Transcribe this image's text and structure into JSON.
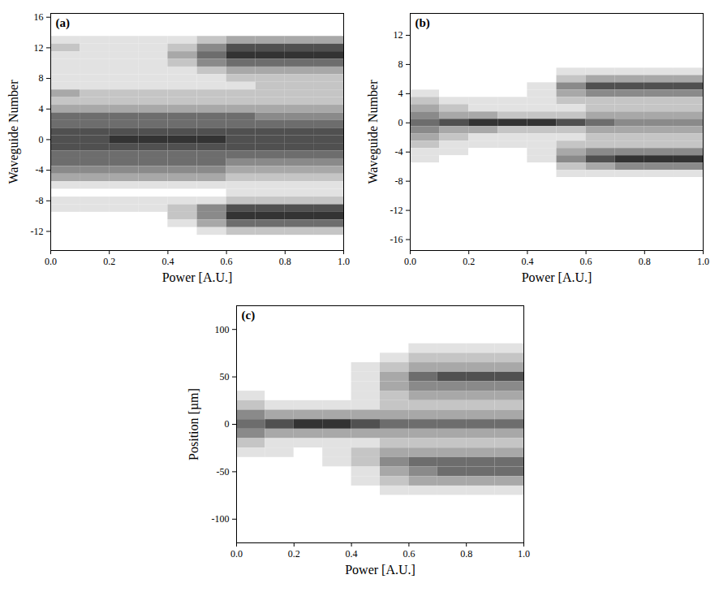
{
  "chart_data": [
    {
      "type": "heatmap",
      "title": "(a)",
      "xlabel": "Power [A.U.]",
      "ylabel": "Waveguide Number",
      "color": "#333333",
      "xlim": [
        0,
        1
      ],
      "xticks": [
        {
          "value": 0,
          "label": "0.0"
        },
        0.2,
        0.4,
        0.6,
        0.8,
        {
          "value": 1,
          "label": "1.0"
        }
      ],
      "ylim": [
        -14.5,
        16.5
      ],
      "yticks": [
        -12,
        -8,
        -4,
        0,
        4,
        8,
        12,
        16
      ],
      "x": [
        0.05,
        0.15,
        0.25,
        0.35,
        0.45,
        0.55,
        0.65,
        0.75,
        0.85,
        0.95
      ],
      "y": [
        13,
        12,
        11,
        10,
        9,
        8,
        7,
        6,
        5,
        4,
        3,
        2,
        1,
        0,
        -1,
        -2,
        -3,
        -4,
        -5,
        -6,
        -7,
        -8,
        -9,
        -10,
        -11,
        -12
      ],
      "z": [
        [
          1,
          1,
          1,
          1,
          1,
          2,
          3,
          3,
          3,
          3
        ],
        [
          2,
          1,
          1,
          1,
          2,
          4,
          6,
          6,
          6,
          6
        ],
        [
          1,
          1,
          1,
          1,
          3,
          5,
          7,
          7,
          7,
          7
        ],
        [
          1,
          1,
          1,
          1,
          2,
          4,
          5,
          5,
          5,
          5
        ],
        [
          1,
          1,
          1,
          1,
          1,
          2,
          3,
          3,
          3,
          3
        ],
        [
          1,
          1,
          1,
          1,
          1,
          1,
          2,
          2,
          2,
          2
        ],
        [
          1,
          1,
          1,
          1,
          1,
          1,
          1,
          2,
          2,
          2
        ],
        [
          3,
          2,
          2,
          2,
          2,
          2,
          2,
          2,
          2,
          2
        ],
        [
          2,
          2,
          2,
          2,
          2,
          2,
          2,
          2,
          2,
          2
        ],
        [
          3,
          3,
          3,
          3,
          3,
          3,
          3,
          3,
          3,
          3
        ],
        [
          5,
          5,
          5,
          5,
          5,
          5,
          5,
          4,
          4,
          4
        ],
        [
          5,
          5,
          5,
          5,
          5,
          5,
          5,
          5,
          5,
          5
        ],
        [
          6,
          6,
          6,
          6,
          6,
          6,
          6,
          6,
          6,
          6
        ],
        [
          6,
          6,
          7,
          7,
          7,
          7,
          6,
          6,
          6,
          6
        ],
        [
          6,
          6,
          6,
          6,
          6,
          6,
          6,
          6,
          6,
          6
        ],
        [
          5,
          5,
          5,
          5,
          5,
          5,
          5,
          5,
          5,
          5
        ],
        [
          5,
          5,
          5,
          5,
          5,
          5,
          4,
          4,
          4,
          4
        ],
        [
          4,
          4,
          4,
          4,
          4,
          4,
          3,
          3,
          3,
          3
        ],
        [
          3,
          3,
          3,
          3,
          3,
          3,
          2,
          2,
          2,
          2
        ],
        [
          1,
          1,
          1,
          1,
          1,
          1,
          1,
          1,
          1,
          1
        ],
        [
          0,
          0,
          0,
          0,
          0,
          0,
          1,
          1,
          1,
          1
        ],
        [
          1,
          1,
          1,
          1,
          1,
          1,
          2,
          2,
          2,
          2
        ],
        [
          1,
          1,
          1,
          1,
          2,
          4,
          6,
          6,
          6,
          6
        ],
        [
          0,
          0,
          0,
          0,
          2,
          4,
          7,
          7,
          7,
          7
        ],
        [
          0,
          0,
          0,
          0,
          1,
          3,
          5,
          5,
          5,
          5
        ],
        [
          0,
          0,
          0,
          0,
          0,
          1,
          2,
          2,
          2,
          2
        ]
      ]
    },
    {
      "type": "heatmap",
      "title": "(b)",
      "xlabel": "Power [A.U.]",
      "ylabel": "Waveguide Number",
      "color": "#333333",
      "xlim": [
        0,
        1
      ],
      "xticks": [
        {
          "value": 0,
          "label": "0.0"
        },
        0.2,
        0.4,
        0.6,
        0.8,
        {
          "value": 1,
          "label": "1.0"
        }
      ],
      "ylim": [
        -17.5,
        15
      ],
      "yticks": [
        -16,
        -12,
        -8,
        -4,
        0,
        4,
        8,
        12
      ],
      "x": [
        0.05,
        0.15,
        0.25,
        0.35,
        0.45,
        0.55,
        0.65,
        0.75,
        0.85,
        0.95
      ],
      "y": [
        8,
        7,
        6,
        5,
        4,
        3,
        2,
        1,
        0,
        -1,
        -2,
        -3,
        -4,
        -5,
        -6,
        -7,
        -8
      ],
      "z": [
        [
          0,
          0,
          0,
          0,
          0,
          0,
          0,
          0,
          0,
          0
        ],
        [
          0,
          0,
          0,
          0,
          0,
          1,
          1,
          1,
          1,
          1
        ],
        [
          0,
          0,
          0,
          0,
          0,
          2,
          3,
          3,
          3,
          3
        ],
        [
          0,
          0,
          0,
          0,
          1,
          4,
          6,
          6,
          6,
          6
        ],
        [
          1,
          0,
          0,
          0,
          1,
          3,
          4,
          4,
          4,
          4
        ],
        [
          2,
          1,
          1,
          1,
          1,
          2,
          2,
          2,
          2,
          2
        ],
        [
          3,
          2,
          1,
          1,
          1,
          1,
          2,
          2,
          2,
          2
        ],
        [
          4,
          3,
          3,
          2,
          2,
          2,
          3,
          3,
          3,
          3
        ],
        [
          5,
          6,
          7,
          7,
          7,
          6,
          5,
          4,
          4,
          4
        ],
        [
          4,
          3,
          3,
          2,
          2,
          2,
          3,
          3,
          3,
          3
        ],
        [
          3,
          2,
          1,
          1,
          1,
          1,
          2,
          2,
          2,
          2
        ],
        [
          2,
          1,
          1,
          1,
          1,
          2,
          2,
          2,
          2,
          2
        ],
        [
          1,
          1,
          0,
          0,
          1,
          3,
          4,
          4,
          4,
          4
        ],
        [
          1,
          0,
          0,
          0,
          1,
          4,
          6,
          7,
          7,
          7
        ],
        [
          0,
          0,
          0,
          0,
          0,
          2,
          3,
          4,
          4,
          4
        ],
        [
          0,
          0,
          0,
          0,
          0,
          1,
          1,
          1,
          1,
          1
        ],
        [
          0,
          0,
          0,
          0,
          0,
          0,
          0,
          0,
          0,
          0
        ]
      ]
    },
    {
      "type": "heatmap",
      "title": "(c)",
      "xlabel": "Power [A.U.]",
      "ylabel": "Position [µm]",
      "color": "#333333",
      "xlim": [
        0,
        1
      ],
      "xticks": [
        {
          "value": 0,
          "label": "0.0"
        },
        0.2,
        0.4,
        0.6,
        0.8,
        {
          "value": 1,
          "label": "1.0"
        }
      ],
      "ylim": [
        -125,
        125
      ],
      "yticks": [
        -100,
        -50,
        0,
        50,
        100
      ],
      "x": [
        0.05,
        0.15,
        0.25,
        0.35,
        0.45,
        0.55,
        0.65,
        0.75,
        0.85,
        0.95
      ],
      "y": [
        80,
        70,
        60,
        50,
        40,
        30,
        20,
        10,
        0,
        -10,
        -20,
        -30,
        -40,
        -50,
        -60,
        -70,
        -80
      ],
      "z": [
        [
          0,
          0,
          0,
          0,
          0,
          0,
          1,
          1,
          1,
          1
        ],
        [
          0,
          0,
          0,
          0,
          0,
          1,
          2,
          2,
          2,
          2
        ],
        [
          0,
          0,
          0,
          0,
          1,
          2,
          3,
          3,
          3,
          3
        ],
        [
          0,
          0,
          0,
          0,
          1,
          3,
          5,
          6,
          6,
          6
        ],
        [
          0,
          0,
          0,
          0,
          1,
          3,
          4,
          4,
          4,
          4
        ],
        [
          1,
          0,
          0,
          0,
          1,
          2,
          3,
          3,
          3,
          3
        ],
        [
          2,
          1,
          1,
          1,
          1,
          2,
          2,
          2,
          2,
          2
        ],
        [
          4,
          3,
          3,
          3,
          3,
          3,
          3,
          3,
          3,
          3
        ],
        [
          5,
          6,
          7,
          7,
          6,
          5,
          5,
          5,
          5,
          5
        ],
        [
          4,
          3,
          3,
          3,
          3,
          3,
          3,
          3,
          3,
          3
        ],
        [
          2,
          1,
          1,
          1,
          1,
          2,
          2,
          2,
          2,
          2
        ],
        [
          1,
          1,
          0,
          1,
          2,
          3,
          3,
          3,
          3,
          3
        ],
        [
          0,
          0,
          0,
          1,
          2,
          4,
          5,
          5,
          5,
          5
        ],
        [
          0,
          0,
          0,
          0,
          1,
          3,
          4,
          5,
          5,
          5
        ],
        [
          0,
          0,
          0,
          0,
          1,
          2,
          3,
          3,
          3,
          3
        ],
        [
          0,
          0,
          0,
          0,
          0,
          1,
          1,
          1,
          1,
          1
        ],
        [
          0,
          0,
          0,
          0,
          0,
          0,
          0,
          0,
          0,
          0
        ]
      ]
    }
  ]
}
